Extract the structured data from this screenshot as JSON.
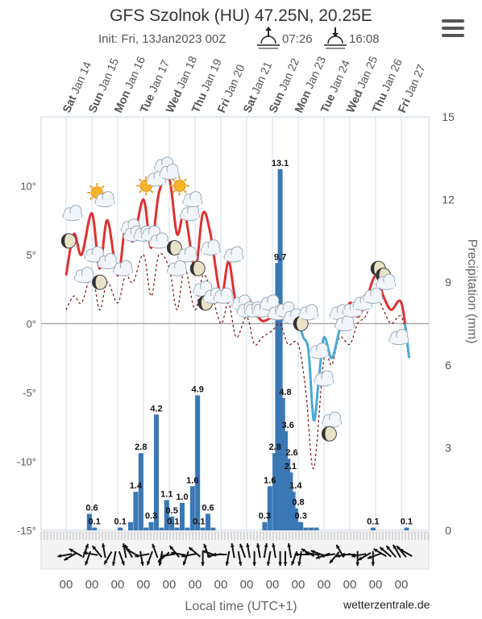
{
  "header": {
    "title": "GFS Szolnok (HU) 47.25N, 20.25E",
    "init": "Init: Fri, 13Jan2023 00Z",
    "sunrise": "07:26",
    "sunset": "16:08",
    "menu_icon": "hamburger-menu-icon"
  },
  "footer": {
    "xlabel": "Local time (UTC+1)",
    "credit": "wetterzentrale.de"
  },
  "chart_data": {
    "type": "line",
    "days": [
      {
        "dow": "Sat",
        "date": "Jan 14"
      },
      {
        "dow": "Sun",
        "date": "Jan 15"
      },
      {
        "dow": "Mon",
        "date": "Jan 16"
      },
      {
        "dow": "Tue",
        "date": "Jan 17"
      },
      {
        "dow": "Wed",
        "date": "Jan 18"
      },
      {
        "dow": "Thu",
        "date": "Jan 19"
      },
      {
        "dow": "Fri",
        "date": "Jan 20"
      },
      {
        "dow": "Sat",
        "date": "Jan 21"
      },
      {
        "dow": "Sun",
        "date": "Jan 22"
      },
      {
        "dow": "Mon",
        "date": "Jan 23"
      },
      {
        "dow": "Tue",
        "date": "Jan 24"
      },
      {
        "dow": "Wed",
        "date": "Jan 25"
      },
      {
        "dow": "Thu",
        "date": "Jan 26"
      },
      {
        "dow": "Fri",
        "date": "Jan 27"
      }
    ],
    "hour_labels": [
      "00",
      "00",
      "00",
      "00",
      "00",
      "00",
      "00",
      "00",
      "00",
      "00",
      "00",
      "00",
      "00",
      "00"
    ],
    "y_left": {
      "min": -15,
      "max": 15,
      "ticks": [
        10,
        5,
        0,
        -5,
        -10,
        -15
      ],
      "tick_labels": [
        "10°",
        "5°",
        "0°",
        "-5°",
        "-10°",
        "-15°"
      ]
    },
    "y_right": {
      "label": "Precipitation (mm)",
      "min": 0,
      "max": 15,
      "ticks": [
        0,
        3,
        6,
        9,
        12,
        15
      ],
      "tick_labels": [
        "0",
        "3",
        "6",
        "9",
        "12",
        "15"
      ]
    },
    "temperature": {
      "color_warm": "#e03030",
      "color_cold": "#4aa8d8",
      "x": [
        0,
        0.3,
        0.6,
        1,
        1.3,
        1.6,
        2,
        2.3,
        2.6,
        3,
        3.3,
        3.6,
        4,
        4.3,
        4.6,
        5,
        5.3,
        5.6,
        6,
        6.3,
        6.6,
        7,
        7.3,
        7.6,
        8,
        8.3,
        8.6,
        9,
        9.2,
        9.4,
        9.6,
        9.8,
        10,
        10.3,
        10.6,
        11,
        11.3,
        11.6,
        12,
        12.3,
        12.6,
        13,
        13.3
      ],
      "values": [
        3.5,
        6.5,
        5.0,
        8.0,
        4.0,
        7.5,
        3.5,
        7.0,
        6.0,
        9.0,
        5.5,
        9.5,
        10.5,
        6.5,
        8.0,
        4.0,
        8.0,
        6.5,
        2.0,
        4.5,
        1.5,
        2.0,
        1.0,
        0.2,
        0.5,
        0.8,
        1.2,
        0,
        -1.0,
        -2.0,
        -7.0,
        -4.0,
        -1.0,
        -2.5,
        -0.5,
        1.5,
        0.5,
        1.5,
        3.5,
        2.0,
        1.0,
        1.5,
        -2.5
      ]
    },
    "dewpoint": {
      "color": "#7a1010",
      "x": [
        0,
        0.3,
        0.6,
        1,
        1.3,
        1.6,
        2,
        2.3,
        2.6,
        3,
        3.3,
        3.6,
        4,
        4.3,
        4.6,
        5,
        5.3,
        5.6,
        6,
        6.3,
        6.6,
        7,
        7.3,
        7.6,
        8,
        8.3,
        8.6,
        9,
        9.3,
        9.6,
        10,
        10.3,
        10.6,
        11,
        11.3,
        11.6,
        12,
        12.3,
        12.6,
        13,
        13.3
      ],
      "values": [
        1.0,
        2.0,
        1.5,
        3.5,
        1.0,
        3.0,
        1.5,
        3.5,
        3.0,
        5.0,
        2.0,
        5.0,
        4.0,
        1.0,
        4.0,
        1.0,
        3.5,
        2.5,
        0.0,
        1.5,
        -1.0,
        0.5,
        -1.5,
        -1.0,
        -0.5,
        0.0,
        -1.5,
        -1.5,
        -5.0,
        -10.5,
        -2.5,
        -3.0,
        -1.0,
        -1.5,
        0.0,
        0.5,
        2.0,
        1.0,
        0.0,
        0.5,
        -2.0
      ]
    },
    "precipitation": {
      "color": "#3b78b4",
      "x": [
        0.9,
        1.1,
        2.1,
        2.5,
        2.7,
        2.9,
        3.1,
        3.3,
        3.5,
        3.7,
        3.9,
        4.1,
        4.3,
        4.5,
        4.7,
        4.9,
        5.1,
        5.3,
        5.5,
        5.7,
        7.7,
        7.9,
        8.1,
        8.2,
        8.3,
        8.4,
        8.5,
        8.6,
        8.7,
        8.8,
        8.9,
        9.0,
        9.1,
        9.3,
        9.5,
        9.7,
        11.9,
        13.2
      ],
      "values": [
        0.6,
        0.1,
        0.1,
        0.3,
        1.4,
        2.8,
        0.1,
        0.3,
        4.2,
        0.1,
        1.1,
        0.5,
        0.1,
        1.0,
        0.1,
        1.6,
        4.9,
        0.1,
        0.6,
        0.1,
        0.3,
        1.6,
        2.8,
        9.7,
        13.1,
        4.8,
        3.6,
        2.6,
        2.1,
        1.4,
        0.8,
        0.3,
        0.3,
        0.1,
        0.1,
        0.1,
        0.1,
        0.1
      ],
      "labels": [
        {
          "x": 1.0,
          "v": 0.6,
          "t": "0.6"
        },
        {
          "x": 1.1,
          "v": 0.1,
          "t": "0.1"
        },
        {
          "x": 2.1,
          "v": 0.1,
          "t": "0.1"
        },
        {
          "x": 2.7,
          "v": 1.4,
          "t": "1.4"
        },
        {
          "x": 2.9,
          "v": 2.8,
          "t": "2.8"
        },
        {
          "x": 3.3,
          "v": 0.3,
          "t": "0.3"
        },
        {
          "x": 3.5,
          "v": 4.2,
          "t": "4.2"
        },
        {
          "x": 3.9,
          "v": 1.1,
          "t": "1.1"
        },
        {
          "x": 4.1,
          "v": 0.5,
          "t": "0.5"
        },
        {
          "x": 4.15,
          "v": 0.1,
          "t": "0.1"
        },
        {
          "x": 4.5,
          "v": 1.0,
          "t": "1.0"
        },
        {
          "x": 4.9,
          "v": 1.6,
          "t": "1.6"
        },
        {
          "x": 5.1,
          "v": 4.9,
          "t": "4.9"
        },
        {
          "x": 5.15,
          "v": 0.1,
          "t": "0.1"
        },
        {
          "x": 5.5,
          "v": 0.6,
          "t": "0.6"
        },
        {
          "x": 7.7,
          "v": 0.3,
          "t": "0.3"
        },
        {
          "x": 7.9,
          "v": 1.6,
          "t": "1.6"
        },
        {
          "x": 8.1,
          "v": 2.8,
          "t": "2.8"
        },
        {
          "x": 8.3,
          "v": 13.1,
          "t": "13.1"
        },
        {
          "x": 8.3,
          "v": 9.7,
          "t": "9.7"
        },
        {
          "x": 8.5,
          "v": 4.8,
          "t": "4.8"
        },
        {
          "x": 8.6,
          "v": 3.6,
          "t": "3.6"
        },
        {
          "x": 8.75,
          "v": 2.6,
          "t": "2.6"
        },
        {
          "x": 8.7,
          "v": 2.1,
          "t": "2.1"
        },
        {
          "x": 8.9,
          "v": 1.4,
          "t": "1.4"
        },
        {
          "x": 9.0,
          "v": 0.8,
          "t": "0.8"
        },
        {
          "x": 9.1,
          "v": 0.3,
          "t": "0.3"
        },
        {
          "x": 11.9,
          "v": 0.1,
          "t": "0.1"
        },
        {
          "x": 13.2,
          "v": 0.1,
          "t": "0.1"
        }
      ]
    },
    "weather_icons": [
      {
        "x": 0.1,
        "t": 6.0,
        "kind": "moon"
      },
      {
        "x": 0.25,
        "t": 8.0,
        "kind": "cloud"
      },
      {
        "x": 0.7,
        "t": 3.5,
        "kind": "cloud"
      },
      {
        "x": 1.1,
        "t": 5.0,
        "kind": "cloud"
      },
      {
        "x": 1.3,
        "t": 3.0,
        "kind": "moon"
      },
      {
        "x": 1.2,
        "t": 9.5,
        "kind": "sun"
      },
      {
        "x": 1.5,
        "t": 9.0,
        "kind": "cloud"
      },
      {
        "x": 1.6,
        "t": 4.5,
        "kind": "cloud"
      },
      {
        "x": 2.2,
        "t": 4.0,
        "kind": "cloud"
      },
      {
        "x": 2.5,
        "t": 7.0,
        "kind": "cloud"
      },
      {
        "x": 2.6,
        "t": 6.5,
        "kind": "cloud"
      },
      {
        "x": 3.0,
        "t": 6.5,
        "kind": "cloud"
      },
      {
        "x": 3.1,
        "t": 10.0,
        "kind": "sun"
      },
      {
        "x": 3.3,
        "t": 6.5,
        "kind": "cloud"
      },
      {
        "x": 3.5,
        "t": 10.5,
        "kind": "cloud"
      },
      {
        "x": 3.6,
        "t": 6.0,
        "kind": "cloud"
      },
      {
        "x": 3.8,
        "t": 11.5,
        "kind": "cloud"
      },
      {
        "x": 4.0,
        "t": 11.0,
        "kind": "cloud"
      },
      {
        "x": 4.2,
        "t": 5.5,
        "kind": "moon"
      },
      {
        "x": 4.3,
        "t": 4.0,
        "kind": "cloud"
      },
      {
        "x": 4.4,
        "t": 10.0,
        "kind": "sun"
      },
      {
        "x": 4.7,
        "t": 5.0,
        "kind": "cloud"
      },
      {
        "x": 4.8,
        "t": 8.0,
        "kind": "cloud"
      },
      {
        "x": 4.9,
        "t": 9.0,
        "kind": "cloud"
      },
      {
        "x": 5.1,
        "t": 4.0,
        "kind": "moon"
      },
      {
        "x": 5.3,
        "t": 2.5,
        "kind": "cloud"
      },
      {
        "x": 5.4,
        "t": 1.5,
        "kind": "moon"
      },
      {
        "x": 5.6,
        "t": 5.5,
        "kind": "cloud"
      },
      {
        "x": 5.7,
        "t": 2.0,
        "kind": "cloud"
      },
      {
        "x": 6.1,
        "t": 2.0,
        "kind": "cloud"
      },
      {
        "x": 6.5,
        "t": 5.0,
        "kind": "cloud"
      },
      {
        "x": 6.8,
        "t": 1.5,
        "kind": "cloud"
      },
      {
        "x": 7.0,
        "t": 1.0,
        "kind": "cloud"
      },
      {
        "x": 7.3,
        "t": 1.0,
        "kind": "cloud"
      },
      {
        "x": 7.6,
        "t": 1.0,
        "kind": "cloud"
      },
      {
        "x": 7.9,
        "t": 1.5,
        "kind": "cloud"
      },
      {
        "x": 8.2,
        "t": 0.8,
        "kind": "cloud"
      },
      {
        "x": 8.5,
        "t": 1.0,
        "kind": "cloud"
      },
      {
        "x": 8.8,
        "t": 0.5,
        "kind": "cloud"
      },
      {
        "x": 9.1,
        "t": 0.0,
        "kind": "moon"
      },
      {
        "x": 9.4,
        "t": 0.8,
        "kind": "cloud"
      },
      {
        "x": 9.8,
        "t": -2.0,
        "kind": "cloud"
      },
      {
        "x": 10.0,
        "t": -4.0,
        "kind": "cloud"
      },
      {
        "x": 10.3,
        "t": -7.0,
        "kind": "cloud"
      },
      {
        "x": 10.2,
        "t": -8.0,
        "kind": "moon"
      },
      {
        "x": 10.6,
        "t": 0.8,
        "kind": "cloud"
      },
      {
        "x": 10.8,
        "t": 0.0,
        "kind": "cloud"
      },
      {
        "x": 11.1,
        "t": 1.0,
        "kind": "cloud"
      },
      {
        "x": 11.5,
        "t": 1.5,
        "kind": "cloud"
      },
      {
        "x": 11.9,
        "t": 2.0,
        "kind": "cloud"
      },
      {
        "x": 12.1,
        "t": 4.0,
        "kind": "moon"
      },
      {
        "x": 12.3,
        "t": 3.5,
        "kind": "moon"
      },
      {
        "x": 12.4,
        "t": 3.0,
        "kind": "cloud"
      },
      {
        "x": 12.9,
        "t": -1.0,
        "kind": "cloud"
      }
    ],
    "wind": [
      {
        "x": 0.1,
        "d": 260,
        "s": 3
      },
      {
        "x": 0.3,
        "d": 240,
        "s": 3
      },
      {
        "x": 0.5,
        "d": 300,
        "s": 2
      },
      {
        "x": 0.7,
        "d": 20,
        "s": 2
      },
      {
        "x": 0.9,
        "d": 200,
        "s": 2
      },
      {
        "x": 1.1,
        "d": 280,
        "s": 2
      },
      {
        "x": 1.3,
        "d": 320,
        "s": 2
      },
      {
        "x": 1.5,
        "d": 350,
        "s": 2
      },
      {
        "x": 1.7,
        "d": 210,
        "s": 2
      },
      {
        "x": 1.9,
        "d": 190,
        "s": 2
      },
      {
        "x": 2.1,
        "d": 160,
        "s": 2
      },
      {
        "x": 2.3,
        "d": 350,
        "s": 2
      },
      {
        "x": 2.5,
        "d": 330,
        "s": 2
      },
      {
        "x": 2.7,
        "d": 300,
        "s": 2
      },
      {
        "x": 2.9,
        "d": 170,
        "s": 2
      },
      {
        "x": 3.1,
        "d": 260,
        "s": 2
      },
      {
        "x": 3.3,
        "d": 200,
        "s": 2
      },
      {
        "x": 3.5,
        "d": 340,
        "s": 2
      },
      {
        "x": 3.7,
        "d": 190,
        "s": 2
      },
      {
        "x": 3.9,
        "d": 230,
        "s": 2
      },
      {
        "x": 4.1,
        "d": 260,
        "s": 2
      },
      {
        "x": 4.3,
        "d": 320,
        "s": 2
      },
      {
        "x": 4.5,
        "d": 280,
        "s": 2
      },
      {
        "x": 4.7,
        "d": 200,
        "s": 2
      },
      {
        "x": 4.9,
        "d": 260,
        "s": 2
      },
      {
        "x": 5.1,
        "d": 310,
        "s": 2
      },
      {
        "x": 5.3,
        "d": 180,
        "s": 2
      },
      {
        "x": 5.5,
        "d": 340,
        "s": 2
      },
      {
        "x": 5.7,
        "d": 290,
        "s": 2
      },
      {
        "x": 5.9,
        "d": 260,
        "s": 2
      },
      {
        "x": 6.1,
        "d": 270,
        "s": 2
      },
      {
        "x": 6.3,
        "d": 190,
        "s": 2
      },
      {
        "x": 6.5,
        "d": 350,
        "s": 2
      },
      {
        "x": 6.7,
        "d": 170,
        "s": 2
      },
      {
        "x": 6.9,
        "d": 340,
        "s": 2
      },
      {
        "x": 7.1,
        "d": 350,
        "s": 2
      },
      {
        "x": 7.3,
        "d": 180,
        "s": 2
      },
      {
        "x": 7.5,
        "d": 350,
        "s": 2
      },
      {
        "x": 7.7,
        "d": 10,
        "s": 2
      },
      {
        "x": 7.9,
        "d": 190,
        "s": 2
      },
      {
        "x": 8.1,
        "d": 350,
        "s": 2
      },
      {
        "x": 8.3,
        "d": 180,
        "s": 2
      },
      {
        "x": 8.5,
        "d": 180,
        "s": 2
      },
      {
        "x": 8.7,
        "d": 350,
        "s": 2
      },
      {
        "x": 8.9,
        "d": 200,
        "s": 2
      },
      {
        "x": 9.1,
        "d": 190,
        "s": 2
      },
      {
        "x": 9.3,
        "d": 270,
        "s": 2
      },
      {
        "x": 9.5,
        "d": 300,
        "s": 2
      },
      {
        "x": 9.7,
        "d": 280,
        "s": 2
      },
      {
        "x": 9.9,
        "d": 290,
        "s": 2
      },
      {
        "x": 10.1,
        "d": 250,
        "s": 2
      },
      {
        "x": 10.3,
        "d": 260,
        "s": 2
      },
      {
        "x": 10.5,
        "d": 220,
        "s": 2
      },
      {
        "x": 10.7,
        "d": 330,
        "s": 2
      },
      {
        "x": 10.9,
        "d": 260,
        "s": 2
      },
      {
        "x": 11.1,
        "d": 270,
        "s": 2
      },
      {
        "x": 11.3,
        "d": 180,
        "s": 2
      },
      {
        "x": 11.5,
        "d": 260,
        "s": 2
      },
      {
        "x": 11.7,
        "d": 240,
        "s": 2
      },
      {
        "x": 11.9,
        "d": 180,
        "s": 2
      },
      {
        "x": 12.1,
        "d": 250,
        "s": 2
      },
      {
        "x": 12.3,
        "d": 300,
        "s": 2
      },
      {
        "x": 12.5,
        "d": 310,
        "s": 2
      },
      {
        "x": 12.7,
        "d": 320,
        "s": 2
      },
      {
        "x": 12.9,
        "d": 330,
        "s": 2
      },
      {
        "x": 13.1,
        "d": 320,
        "s": 2
      },
      {
        "x": 13.3,
        "d": 300,
        "s": 2
      }
    ]
  }
}
